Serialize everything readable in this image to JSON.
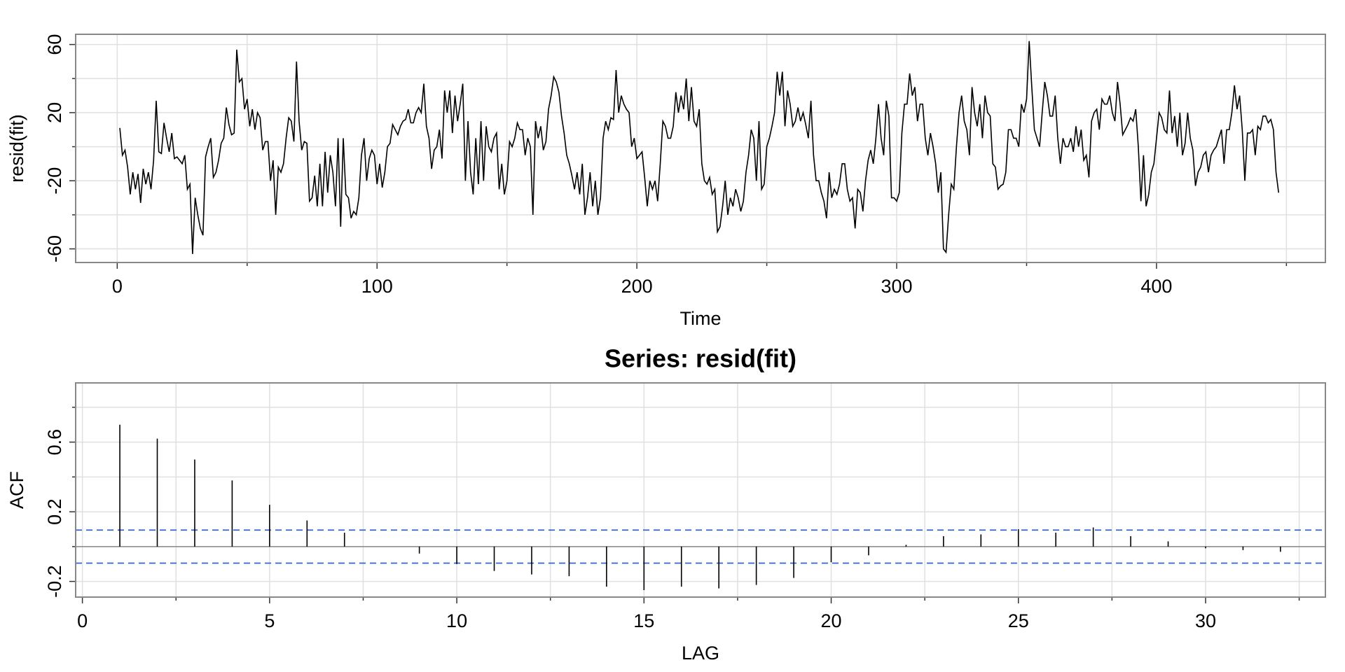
{
  "chart_data": [
    {
      "type": "line",
      "xlabel": "Time",
      "ylabel": "resid(fit)",
      "color": "#000000",
      "grid": true,
      "xlim": [
        -16,
        465
      ],
      "ylim": [
        -68,
        66
      ],
      "xticks": [
        0,
        100,
        200,
        300,
        400
      ],
      "xminor": [
        50,
        150,
        250,
        350,
        450
      ],
      "yticks": [
        -60,
        -20,
        20,
        60
      ],
      "yminor": [
        -40,
        0,
        40
      ],
      "x": [
        1,
        2,
        3,
        4,
        5,
        6,
        7,
        8,
        9,
        10,
        11,
        12,
        13,
        14,
        15,
        16,
        17,
        18,
        19,
        20,
        21,
        22,
        23,
        24,
        25,
        26,
        27,
        28,
        29,
        30,
        31,
        32,
        33,
        34,
        35,
        36,
        37,
        38,
        39,
        40,
        41,
        42,
        43,
        44,
        45,
        46,
        47,
        48,
        49,
        50,
        51,
        52,
        53,
        54,
        55,
        56,
        57,
        58,
        59,
        60,
        61,
        62,
        63,
        64,
        65,
        66,
        67,
        68,
        69,
        70,
        71,
        72,
        73,
        74,
        75,
        76,
        77,
        78,
        79,
        80,
        81,
        82,
        83,
        84,
        85,
        86,
        87,
        88,
        89,
        90,
        91,
        92,
        93,
        94,
        95,
        96,
        97,
        98,
        99,
        100,
        101,
        102,
        103,
        104,
        105,
        106,
        107,
        108,
        109,
        110,
        111,
        112,
        113,
        114,
        115,
        116,
        117,
        118,
        119,
        120,
        121,
        122,
        123,
        124,
        125,
        126,
        127,
        128,
        129,
        130,
        131,
        132,
        133,
        134,
        135,
        136,
        137,
        138,
        139,
        140,
        141,
        142,
        143,
        144,
        145,
        146,
        147,
        148,
        149,
        150,
        151,
        152,
        153,
        154,
        155,
        156,
        157,
        158,
        159,
        160,
        161,
        162,
        163,
        164,
        165,
        166,
        167,
        168,
        169,
        170,
        171,
        172,
        173,
        174,
        175,
        176,
        177,
        178,
        179,
        180,
        181,
        182,
        183,
        184,
        185,
        186,
        187,
        188,
        189,
        190,
        191,
        192,
        193,
        194,
        195,
        196,
        197,
        198,
        199,
        200,
        201,
        202,
        203,
        204,
        205,
        206,
        207,
        208,
        209,
        210,
        211,
        212,
        213,
        214,
        215,
        216,
        217,
        218,
        219,
        220,
        221,
        222,
        223,
        224,
        225,
        226,
        227,
        228,
        229,
        230,
        231,
        232,
        233,
        234,
        235,
        236,
        237,
        238,
        239,
        240,
        241,
        242,
        243,
        244,
        245,
        246,
        247,
        248,
        249,
        250,
        251,
        252,
        253,
        254,
        255,
        256,
        257,
        258,
        259,
        260,
        261,
        262,
        263,
        264,
        265,
        266,
        267,
        268,
        269,
        270,
        271,
        272,
        273,
        274,
        275,
        276,
        277,
        278,
        279,
        280,
        281,
        282,
        283,
        284,
        285,
        286,
        287,
        288,
        289,
        290,
        291,
        292,
        293,
        294,
        295,
        296,
        297,
        298,
        299,
        300,
        301,
        302,
        303,
        304,
        305,
        306,
        307,
        308,
        309,
        310,
        311,
        312,
        313,
        314,
        315,
        316,
        317,
        318,
        319,
        320,
        321,
        322,
        323,
        324,
        325,
        326,
        327,
        328,
        329,
        330,
        331,
        332,
        333,
        334,
        335,
        336,
        337,
        338,
        339,
        340,
        341,
        342,
        343,
        344,
        345,
        346,
        347,
        348,
        349,
        350,
        351,
        352,
        353,
        354,
        355,
        356,
        357,
        358,
        359,
        360,
        361,
        362,
        363,
        364,
        365,
        366,
        367,
        368,
        369,
        370,
        371,
        372,
        373,
        374,
        375,
        376,
        377,
        378,
        379,
        380,
        381,
        382,
        383,
        384,
        385,
        386,
        387,
        388,
        389,
        390,
        391,
        392,
        393,
        394,
        395,
        396,
        397,
        398,
        399,
        400,
        401,
        402,
        403,
        404,
        405,
        406,
        407,
        408,
        409,
        410,
        411,
        412,
        413,
        414,
        415,
        416,
        417,
        418,
        419,
        420,
        421,
        422,
        423,
        424,
        425,
        426,
        427,
        428,
        429,
        430,
        431,
        432,
        433,
        434,
        435,
        436,
        437,
        438,
        439,
        440,
        441,
        442,
        443,
        444,
        445,
        446,
        447
      ],
      "values": [
        11,
        -5,
        -2,
        -12,
        -28,
        -15,
        -25,
        -16,
        -33,
        -13,
        -22,
        -15,
        -25,
        -8,
        27,
        -3,
        -4,
        14,
        5,
        -3,
        8,
        -7,
        -6,
        -8,
        -10,
        -5,
        -25,
        -22,
        -63,
        -30,
        -40,
        -48,
        -52,
        -6,
        0,
        5,
        -18,
        -15,
        -8,
        2,
        5,
        23,
        13,
        7,
        8,
        57,
        38,
        40,
        22,
        28,
        12,
        22,
        10,
        20,
        17,
        -2,
        3,
        3,
        -20,
        -8,
        -40,
        -12,
        -15,
        -10,
        5,
        17,
        15,
        3,
        50,
        15,
        -2,
        3,
        2,
        -32,
        -30,
        -17,
        -35,
        -10,
        -35,
        -3,
        -27,
        -5,
        -15,
        -35,
        5,
        -47,
        5,
        -28,
        -30,
        -42,
        -38,
        -40,
        -30,
        -5,
        5,
        -20,
        -7,
        -2,
        -5,
        -22,
        -10,
        -24,
        -15,
        0,
        2,
        13,
        10,
        7,
        12,
        15,
        16,
        22,
        14,
        14,
        20,
        23,
        20,
        37,
        12,
        5,
        -13,
        -2,
        0,
        10,
        -7,
        33,
        20,
        33,
        8,
        30,
        15,
        25,
        37,
        -20,
        15,
        -15,
        -28,
        5,
        -22,
        15,
        -20,
        12,
        0,
        -3,
        5,
        8,
        -25,
        -10,
        -28,
        -20,
        3,
        0,
        5,
        14,
        10,
        10,
        -5,
        5,
        0,
        -40,
        15,
        5,
        12,
        -2,
        3,
        22,
        30,
        41,
        38,
        32,
        18,
        8,
        -5,
        -10,
        -17,
        -25,
        -15,
        -28,
        -10,
        -40,
        -30,
        -15,
        -35,
        -20,
        -40,
        -30,
        5,
        15,
        10,
        17,
        16,
        45,
        20,
        30,
        25,
        22,
        20,
        0,
        5,
        -7,
        -5,
        -3,
        -18,
        -35,
        -20,
        -25,
        -20,
        -32,
        -10,
        15,
        12,
        5,
        5,
        12,
        32,
        20,
        30,
        22,
        40,
        15,
        35,
        15,
        12,
        22,
        -10,
        -20,
        -22,
        -18,
        -28,
        -25,
        -50,
        -47,
        -35,
        -20,
        -40,
        -30,
        -35,
        -25,
        -30,
        -38,
        -32,
        -15,
        -5,
        10,
        5,
        -20,
        15,
        -25,
        -22,
        0,
        5,
        12,
        20,
        44,
        30,
        44,
        12,
        33,
        25,
        12,
        15,
        23,
        15,
        20,
        13,
        5,
        27,
        -5,
        -20,
        -20,
        -27,
        -32,
        -42,
        -15,
        -30,
        -25,
        -28,
        -22,
        -10,
        -10,
        -25,
        -32,
        -30,
        -48,
        -25,
        -27,
        -38,
        -20,
        -8,
        -2,
        -10,
        5,
        25,
        5,
        -5,
        27,
        18,
        -30,
        -30,
        -32,
        -27,
        8,
        25,
        25,
        43,
        30,
        35,
        15,
        25,
        25,
        5,
        -5,
        8,
        0,
        -10,
        -27,
        -15,
        -60,
        -62,
        -40,
        -22,
        -25,
        0,
        20,
        30,
        15,
        10,
        -5,
        35,
        20,
        12,
        25,
        5,
        30,
        20,
        18,
        -10,
        -12,
        -25,
        -23,
        -22,
        -15,
        10,
        10,
        5,
        5,
        0,
        25,
        20,
        28,
        62,
        35,
        10,
        5,
        0,
        20,
        38,
        30,
        18,
        18,
        30,
        5,
        -10,
        5,
        0,
        0,
        5,
        -3,
        12,
        0,
        10,
        -8,
        -5,
        -18,
        15,
        20,
        22,
        10,
        28,
        25,
        25,
        30,
        20,
        15,
        38,
        25,
        7,
        10,
        13,
        17,
        15,
        22,
        0,
        -32,
        -5,
        -35,
        -28,
        -15,
        -10,
        5,
        20,
        17,
        10,
        8,
        33,
        8,
        18,
        0,
        20,
        -5,
        2,
        20,
        5,
        -2,
        -23,
        -15,
        -12,
        -5,
        -3,
        -15,
        -5,
        -2,
        0,
        5,
        10,
        -10,
        10,
        10,
        20,
        36,
        22,
        30,
        10,
        -20,
        8,
        8,
        10,
        -5,
        12,
        10,
        18,
        18,
        14,
        16,
        10,
        -15,
        -27
      ]
    },
    {
      "type": "stem",
      "title": "Series:  resid(fit)",
      "xlabel": "LAG",
      "ylabel": "ACF",
      "color": "#000000",
      "grid": true,
      "xlim": [
        -0.18,
        33.2
      ],
      "ylim": [
        -0.29,
        0.94
      ],
      "xticks": [
        0,
        5,
        10,
        15,
        20,
        25,
        30
      ],
      "xminor": [
        2.5,
        7.5,
        12.5,
        17.5,
        22.5,
        27.5,
        32.5
      ],
      "yticks": [
        -0.2,
        0.2,
        0.6
      ],
      "yminor": [
        0,
        0.4,
        0.8
      ],
      "conf_limits": [
        0.095,
        -0.095
      ],
      "conf_color": "#3366cc",
      "x": [
        1,
        2,
        3,
        4,
        5,
        6,
        7,
        8,
        9,
        10,
        11,
        12,
        13,
        14,
        15,
        16,
        17,
        18,
        19,
        20,
        21,
        22,
        23,
        24,
        25,
        26,
        27,
        28,
        29,
        30,
        31,
        32
      ],
      "values": [
        0.7,
        0.62,
        0.5,
        0.38,
        0.24,
        0.15,
        0.08,
        0.0,
        -0.04,
        -0.1,
        -0.14,
        -0.16,
        -0.17,
        -0.23,
        -0.25,
        -0.23,
        -0.24,
        -0.22,
        -0.18,
        -0.09,
        -0.05,
        0.01,
        0.06,
        0.07,
        0.1,
        0.08,
        0.11,
        0.06,
        0.03,
        -0.01,
        -0.02,
        -0.03
      ]
    }
  ]
}
